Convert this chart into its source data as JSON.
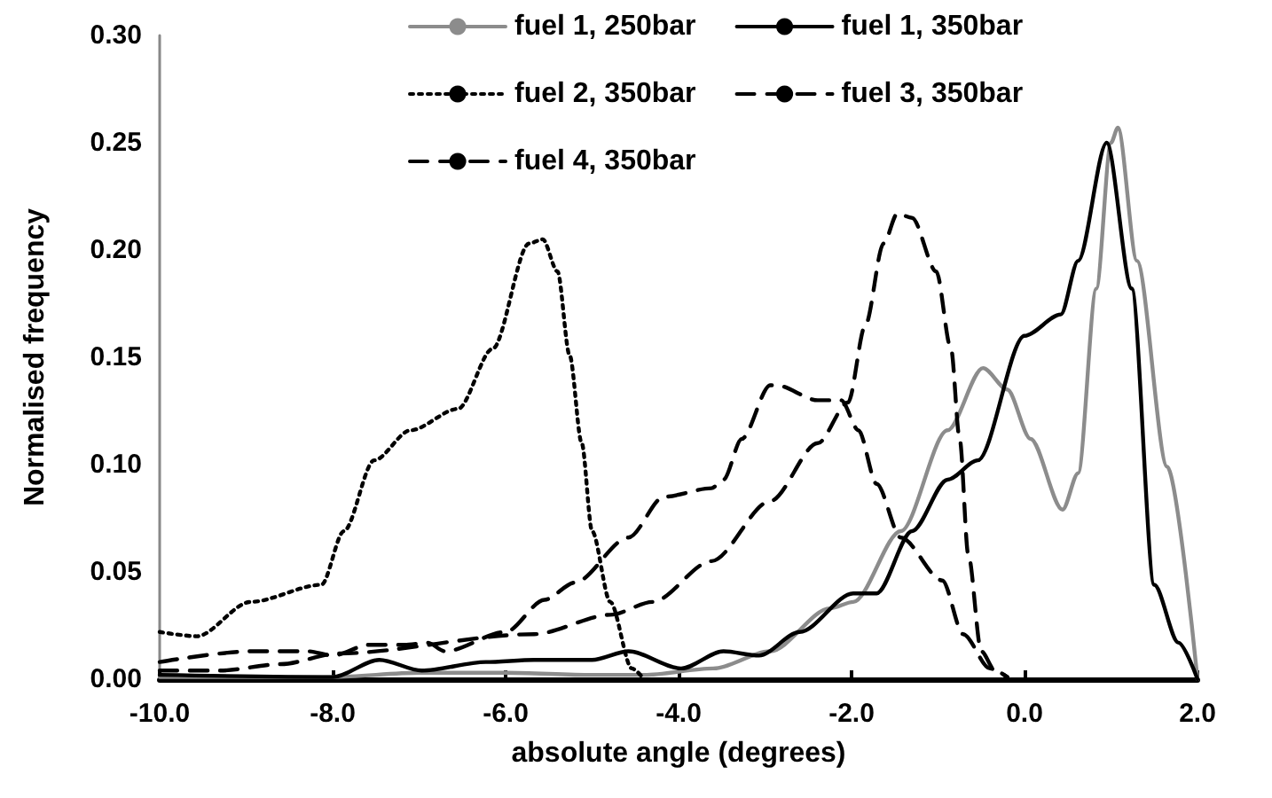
{
  "chart_data": {
    "type": "line",
    "xlabel": "absolute angle (degrees)",
    "ylabel": "Normalised frequency",
    "xlim": [
      -10,
      2
    ],
    "ylim": [
      0,
      0.3
    ],
    "xticks": [
      {
        "value": -10,
        "label": "-10.0"
      },
      {
        "value": -8,
        "label": "-8.0"
      },
      {
        "value": -6,
        "label": "-6.0"
      },
      {
        "value": -4,
        "label": "-4.0"
      },
      {
        "value": -2,
        "label": "-2.0"
      },
      {
        "value": 0,
        "label": "0.0"
      },
      {
        "value": 2,
        "label": "2.0"
      }
    ],
    "yticks": [
      {
        "value": 0,
        "label": "0.00"
      },
      {
        "value": 0.05,
        "label": "0.05"
      },
      {
        "value": 0.1,
        "label": "0.10"
      },
      {
        "value": 0.15,
        "label": "0.15"
      },
      {
        "value": 0.2,
        "label": "0.20"
      },
      {
        "value": 0.25,
        "label": "0.25"
      },
      {
        "value": 0.3,
        "label": "0.30"
      }
    ],
    "grid": false,
    "legend": "top",
    "marker": "none",
    "series": [
      {
        "name": "fuel 1, 250bar",
        "color": "#8c8c8c",
        "line_style": "solid",
        "x": [
          -10,
          -8,
          -7,
          -6,
          -5,
          -4.4,
          -3.6,
          -2.94,
          -2.25,
          -1.98,
          -1.43,
          -0.89,
          -0.48,
          -0.2,
          0.07,
          0.44,
          0.62,
          0.83,
          1.0,
          1.08,
          1.3,
          1.65,
          2.0
        ],
        "values": [
          0.001,
          0.001,
          0.003,
          0.003,
          0.002,
          0.002,
          0.005,
          0.013,
          0.033,
          0.036,
          0.069,
          0.116,
          0.145,
          0.135,
          0.112,
          0.079,
          0.096,
          0.182,
          0.25,
          0.257,
          0.195,
          0.099,
          0
        ]
      },
      {
        "name": "fuel 1, 350bar",
        "color": "#000000",
        "line_style": "solid",
        "x": [
          -10,
          -8,
          -7.46,
          -6.97,
          -6.23,
          -5.67,
          -5.0,
          -4.58,
          -3.97,
          -3.48,
          -3.07,
          -2.6,
          -1.98,
          -1.71,
          -1.3,
          -0.89,
          -0.54,
          0.0,
          0.42,
          0.62,
          0.95,
          1.24,
          1.5,
          1.78,
          2.0
        ],
        "values": [
          0.002,
          0.001,
          0.009,
          0.004,
          0.008,
          0.009,
          0.009,
          0.013,
          0.005,
          0.013,
          0.011,
          0.022,
          0.04,
          0.04,
          0.069,
          0.093,
          0.102,
          0.16,
          0.17,
          0.195,
          0.25,
          0.182,
          0.044,
          0.017,
          0
        ]
      },
      {
        "name": "fuel 2, 350bar",
        "color": "#000000",
        "line_style": "dotted",
        "x": [
          -10,
          -9.57,
          -8.95,
          -8.13,
          -7.87,
          -7.52,
          -7.1,
          -6.55,
          -6.15,
          -5.73,
          -5.57,
          -5.4,
          -5.26,
          -5.12,
          -5.0,
          -4.79,
          -4.54,
          -4.4
        ],
        "values": [
          0.022,
          0.02,
          0.036,
          0.044,
          0.069,
          0.102,
          0.116,
          0.126,
          0.154,
          0.203,
          0.205,
          0.19,
          0.151,
          0.11,
          0.069,
          0.036,
          0.005,
          0
        ]
      },
      {
        "name": "fuel 3, 350bar",
        "color": "#000000",
        "line_style": "dashed",
        "x": [
          -10,
          -9.3,
          -8.6,
          -7.93,
          -5.67,
          -4.79,
          -4.3,
          -3.62,
          -2.94,
          -2.39,
          -2.04,
          -1.84,
          -1.63,
          -1.47,
          -1.3,
          -1.02,
          -0.85,
          -0.75,
          -0.65,
          -0.5,
          -0.34,
          -0.2
        ],
        "values": [
          0.004,
          0.004,
          0.007,
          0.012,
          0.021,
          0.03,
          0.036,
          0.055,
          0.083,
          0.11,
          0.129,
          0.165,
          0.203,
          0.217,
          0.215,
          0.19,
          0.154,
          0.112,
          0.058,
          0.013,
          0.004,
          0.001
        ]
      },
      {
        "name": "fuel 4, 350bar",
        "color": "#000000",
        "line_style": "dashed",
        "x": [
          -10,
          -8.95,
          -8.28,
          -8.0,
          -7.58,
          -7.17,
          -6.9,
          -6.7,
          -6.0,
          -5.55,
          -5.2,
          -4.58,
          -4.17,
          -3.62,
          -3.48,
          -3.27,
          -2.94,
          -2.87,
          -2.39,
          -2.12,
          -1.92,
          -1.71,
          -1.43,
          -0.95,
          -0.71,
          -0.4,
          -0.2
        ],
        "values": [
          0.008,
          0.013,
          0.013,
          0.011,
          0.016,
          0.016,
          0.017,
          0.013,
          0.022,
          0.037,
          0.045,
          0.066,
          0.085,
          0.089,
          0.093,
          0.112,
          0.137,
          0.137,
          0.13,
          0.13,
          0.116,
          0.091,
          0.066,
          0.046,
          0.021,
          0.005,
          0.001
        ]
      }
    ]
  }
}
